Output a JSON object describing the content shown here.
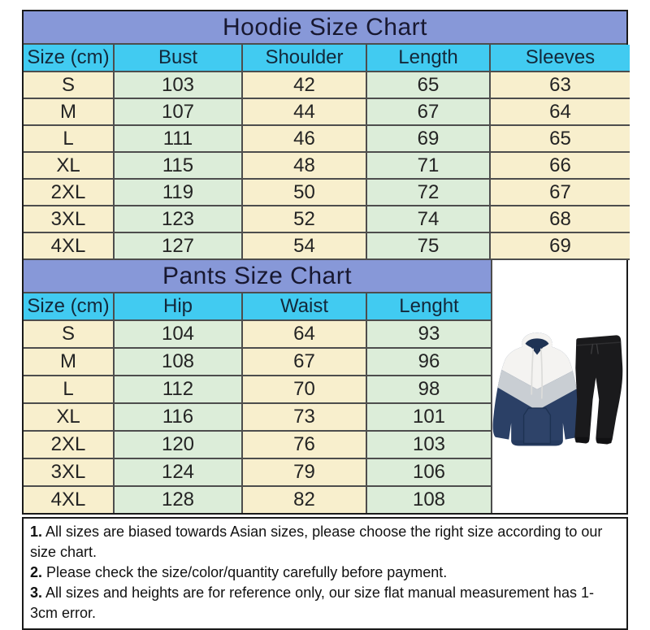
{
  "chart_data": [
    {
      "type": "table",
      "title": "Hoodie Size Chart",
      "columns": [
        "Size (cm)",
        "Bust",
        "Shoulder",
        "Length",
        "Sleeves"
      ],
      "rows": [
        [
          "S",
          "103",
          "42",
          "65",
          "63"
        ],
        [
          "M",
          "107",
          "44",
          "67",
          "64"
        ],
        [
          "L",
          "111",
          "46",
          "69",
          "65"
        ],
        [
          "XL",
          "115",
          "48",
          "71",
          "66"
        ],
        [
          "2XL",
          "119",
          "50",
          "72",
          "67"
        ],
        [
          "3XL",
          "123",
          "52",
          "74",
          "68"
        ],
        [
          "4XL",
          "127",
          "54",
          "75",
          "69"
        ]
      ]
    },
    {
      "type": "table",
      "title": "Pants Size Chart",
      "columns": [
        "Size (cm)",
        "Hip",
        "Waist",
        "Lenght"
      ],
      "rows": [
        [
          "S",
          "104",
          "64",
          "93"
        ],
        [
          "M",
          "108",
          "67",
          "96"
        ],
        [
          "L",
          "112",
          "70",
          "98"
        ],
        [
          "XL",
          "116",
          "73",
          "101"
        ],
        [
          "2XL",
          "120",
          "76",
          "103"
        ],
        [
          "3XL",
          "124",
          "79",
          "106"
        ],
        [
          "4XL",
          "128",
          "82",
          "108"
        ]
      ]
    }
  ],
  "notes": [
    {
      "num": "1.",
      "text": "All sizes are biased towards Asian sizes, please choose the right size according to our size chart."
    },
    {
      "num": "2.",
      "text": "Please check the size/color/quantity carefully before payment."
    },
    {
      "num": "3.",
      "text": "All sizes and heights are for reference only, our size flat manual measurement has 1-3cm error."
    }
  ],
  "product_image": {
    "label": "color-block hoodie with black jogger pants"
  },
  "colors": {
    "title_bar": "#8798d8",
    "header_row": "#41cbf1",
    "column_yellow": "#f8efcd",
    "column_green": "#dcedd9",
    "hoodie_navy": "#2b4066",
    "hoodie_gray": "#c9ced3",
    "hoodie_white": "#f4f3f1",
    "pants_black": "#1a1a1c"
  }
}
